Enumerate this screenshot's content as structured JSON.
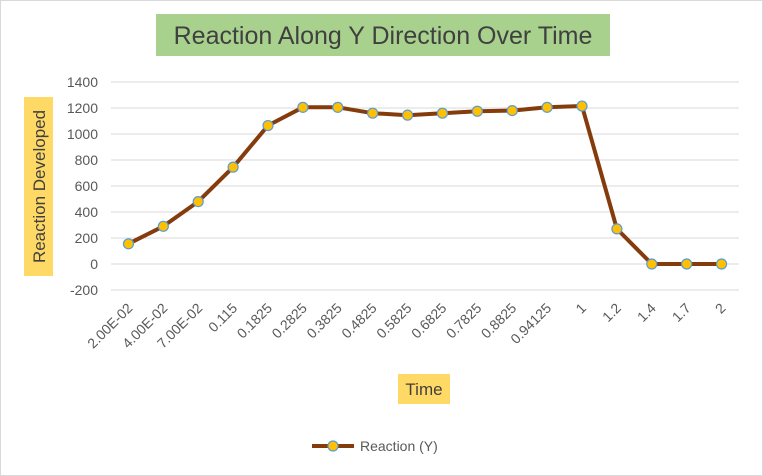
{
  "chart_data": {
    "type": "line",
    "title": "Reaction Along Y Direction Over Time",
    "xlabel": "Time",
    "ylabel": "Reaction Developed",
    "categories": [
      "2.00E-02",
      "4.00E-02",
      "7.00E-02",
      "0.115",
      "0.1825",
      "0.2825",
      "0.3825",
      "0.4825",
      "0.5825",
      "0.6825",
      "0.7825",
      "0.8825",
      "0.94125",
      "1",
      "1.2",
      "1.4",
      "1.7",
      "2"
    ],
    "series": [
      {
        "name": "Reaction (Y)",
        "values": [
          155,
          290,
          480,
          745,
          1065,
          1205,
          1205,
          1160,
          1145,
          1160,
          1175,
          1180,
          1205,
          1215,
          270,
          0,
          0,
          0
        ]
      }
    ],
    "ylim": [
      -200,
      1400
    ],
    "yticks": [
      -200,
      0,
      200,
      400,
      600,
      800,
      1000,
      1200,
      1400
    ],
    "grid": true,
    "legend": "bottom",
    "colors": {
      "line": "#843c0c",
      "marker_fill": "#ffc000",
      "marker_edge": "#5b9bd5",
      "title_bg": "#a9d18e",
      "axis_label_bg": "#ffd966"
    }
  }
}
